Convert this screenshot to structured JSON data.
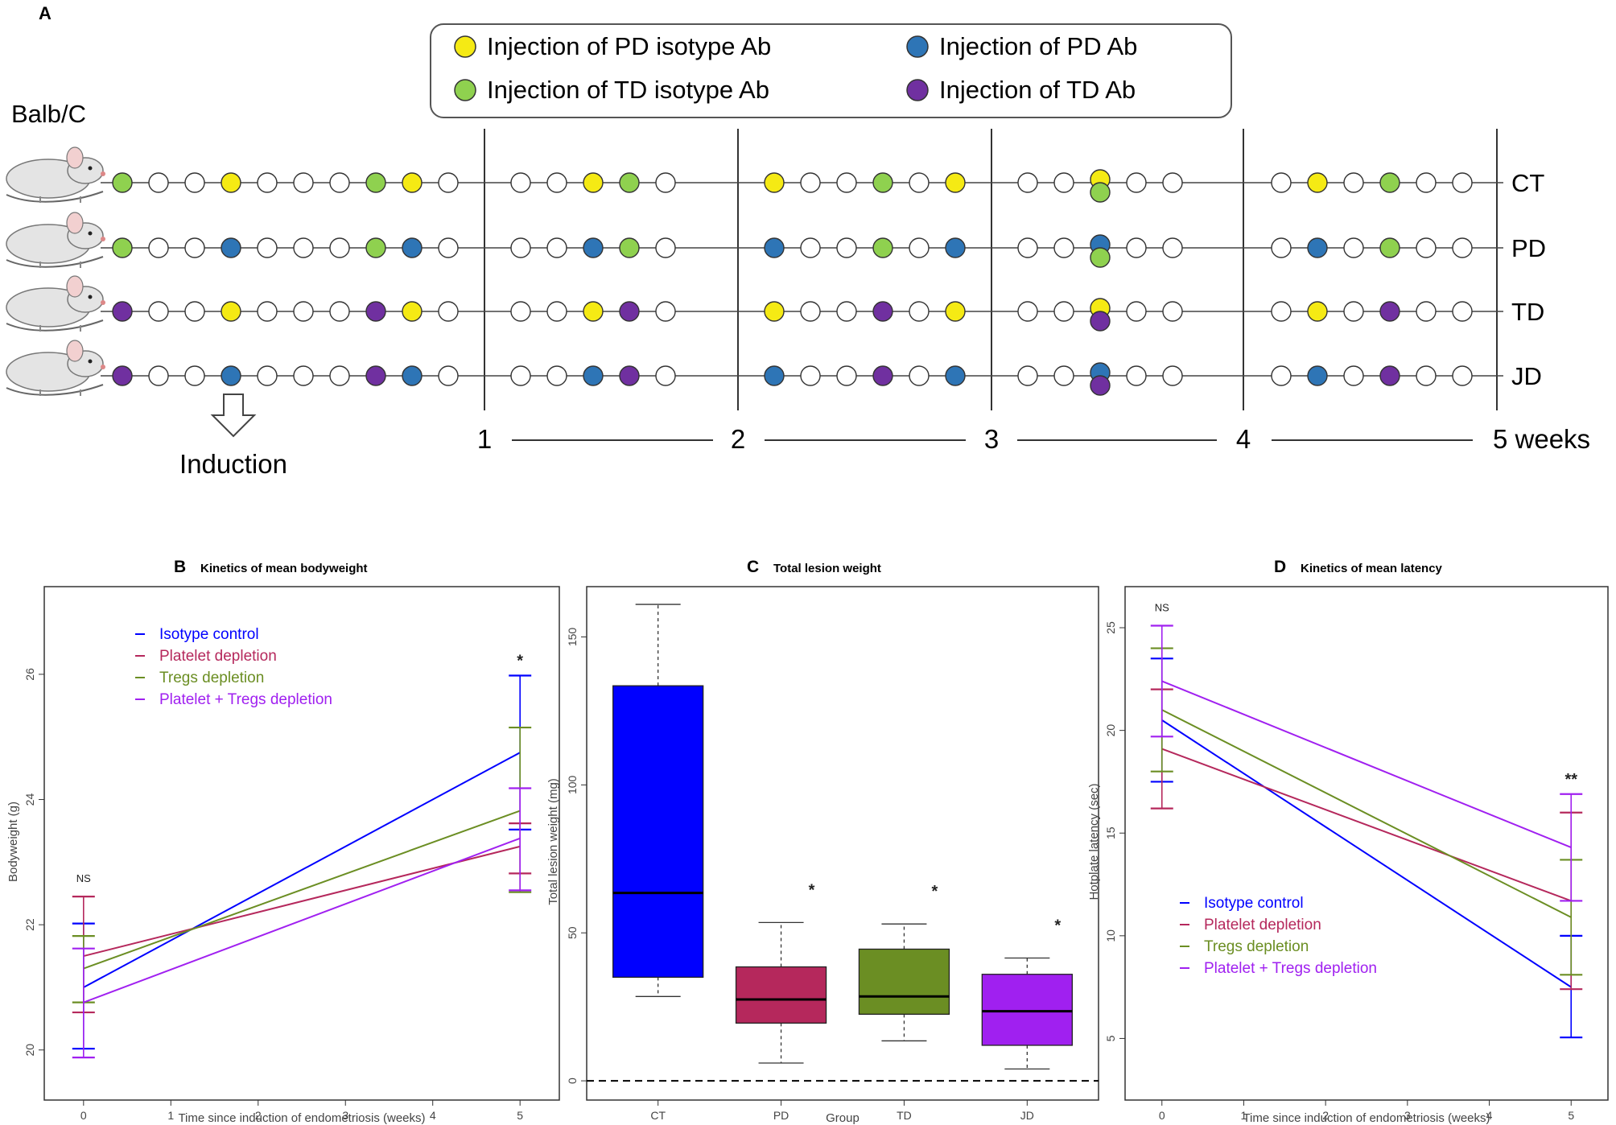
{
  "panel_a": {
    "letter": "A",
    "strain": "Balb/C",
    "induction": "Induction",
    "legend": [
      {
        "key": "Y",
        "label": "Injection of PD isotype Ab",
        "color": "#f5ea14"
      },
      {
        "key": "G",
        "label": "Injection of TD isotype Ab",
        "color": "#8fd14f"
      },
      {
        "key": "B",
        "label": "Injection of PD Ab",
        "color": "#2e75b6"
      },
      {
        "key": "P",
        "label": "Injection of TD Ab",
        "color": "#7030a0"
      }
    ],
    "week_labels": [
      "1",
      "2",
      "3",
      "4",
      "5 weeks"
    ],
    "rows": [
      {
        "name": "CT",
        "pd": "Y",
        "td": "G"
      },
      {
        "name": "PD",
        "pd": "B",
        "td": "G"
      },
      {
        "name": "TD",
        "pd": "Y",
        "td": "P"
      },
      {
        "name": "JD",
        "pd": "B",
        "td": "P"
      }
    ],
    "schedule": [
      {
        "week": 1,
        "days": [
          "td",
          "",
          "",
          "pd",
          "",
          "",
          "",
          "td",
          "pd",
          ""
        ]
      },
      {
        "week": 2,
        "days": [
          "",
          "",
          "pd",
          "td",
          ""
        ]
      },
      {
        "week": 3,
        "days": [
          "pd",
          "",
          "",
          "td",
          "",
          "pd"
        ]
      },
      {
        "week": 4,
        "days": [
          "",
          "",
          "both",
          "",
          ""
        ]
      },
      {
        "week": 5,
        "days": [
          "",
          "pd",
          "",
          "td",
          "",
          ""
        ]
      }
    ]
  },
  "chart_data": [
    {
      "panel": "B",
      "type": "line",
      "title": "Kinetics of mean bodyweight",
      "xlabel": "Time since induction of endometriosis (weeks)",
      "ylabel": "Bodyweight (g)",
      "x": [
        0,
        5
      ],
      "xticks": [
        "0",
        "1",
        "2",
        "3",
        "4",
        "5"
      ],
      "yticks": [
        "20",
        "22",
        "24",
        "26"
      ],
      "xlim": [
        -0.45,
        5.45
      ],
      "ylim": [
        19.2,
        27.4
      ],
      "legend_position": "top-left",
      "annotations": [
        {
          "x": 0,
          "text": "NS"
        },
        {
          "x": 5,
          "text": "*"
        }
      ],
      "series": [
        {
          "name": "Isotype control",
          "color": "#0000ff",
          "values": [
            21.0,
            24.75
          ],
          "err_low": [
            20.02,
            23.52
          ],
          "err_high": [
            22.02,
            25.98
          ]
        },
        {
          "name": "Platelet depletion",
          "color": "#b5285c",
          "values": [
            21.5,
            23.25
          ],
          "err_low": [
            20.6,
            22.82
          ],
          "err_high": [
            22.45,
            23.62
          ]
        },
        {
          "name": "Tregs depletion",
          "color": "#6b8e23",
          "values": [
            21.3,
            23.82
          ],
          "err_low": [
            20.76,
            22.52
          ],
          "err_high": [
            21.82,
            25.15
          ]
        },
        {
          "name": "Platelet + Tregs depletion",
          "color": "#a020f0",
          "values": [
            20.76,
            23.38
          ],
          "err_low": [
            19.88,
            22.55
          ],
          "err_high": [
            21.62,
            24.18
          ]
        }
      ]
    },
    {
      "panel": "C",
      "type": "box",
      "title": "Total lesion weight",
      "xlabel": "Group",
      "ylabel": "Total lesion weight (mg)",
      "categories": [
        "CT",
        "PD",
        "TD",
        "JD"
      ],
      "yticks": [
        "0",
        "50",
        "100",
        "150"
      ],
      "ylim": [
        -6.5,
        167
      ],
      "reference_line": 0,
      "boxes": [
        {
          "name": "CT",
          "color": "#0000ff",
          "min": 28.5,
          "q1": 35,
          "median": 63.5,
          "q3": 133.5,
          "max": 161,
          "mark": ""
        },
        {
          "name": "PD",
          "color": "#b5285c",
          "min": 6,
          "q1": 19.5,
          "median": 27.5,
          "q3": 38.5,
          "max": 53.5,
          "mark": "*"
        },
        {
          "name": "TD",
          "color": "#6b8e23",
          "min": 13.5,
          "q1": 22.5,
          "median": 28.5,
          "q3": 44.5,
          "max": 53,
          "mark": "*"
        },
        {
          "name": "JD",
          "color": "#a020f0",
          "min": 4,
          "q1": 12,
          "median": 23.5,
          "q3": 36,
          "max": 41.5,
          "mark": "*"
        }
      ]
    },
    {
      "panel": "D",
      "type": "line",
      "title": "Kinetics of mean latency",
      "xlabel": "Time since induction of endometriosis (weeks)",
      "ylabel": "Hotplate latency (sec)",
      "x": [
        0,
        5
      ],
      "xticks": [
        "0",
        "1",
        "2",
        "3",
        "4",
        "5"
      ],
      "yticks": [
        "5",
        "10",
        "15",
        "20",
        "25"
      ],
      "xlim": [
        -0.45,
        5.45
      ],
      "ylim": [
        2.0,
        27.0
      ],
      "legend_position": "bottom-left",
      "annotations": [
        {
          "x": 0,
          "text": "NS"
        },
        {
          "x": 5,
          "text": "**"
        }
      ],
      "series": [
        {
          "name": "Isotype control",
          "color": "#0000ff",
          "values": [
            20.5,
            7.5
          ],
          "err_low": [
            17.5,
            5.05
          ],
          "err_high": [
            23.5,
            10.0
          ]
        },
        {
          "name": "Platelet depletion",
          "color": "#b5285c",
          "values": [
            19.1,
            11.7
          ],
          "err_low": [
            16.2,
            7.4
          ],
          "err_high": [
            22.0,
            16.0
          ]
        },
        {
          "name": "Tregs depletion",
          "color": "#6b8e23",
          "values": [
            21.0,
            10.9
          ],
          "err_low": [
            18.0,
            8.1
          ],
          "err_high": [
            24.0,
            13.7
          ]
        },
        {
          "name": "Platelet + Tregs depletion",
          "color": "#a020f0",
          "values": [
            22.4,
            14.3
          ],
          "err_low": [
            19.7,
            11.7
          ],
          "err_high": [
            25.1,
            16.9
          ]
        }
      ]
    }
  ]
}
